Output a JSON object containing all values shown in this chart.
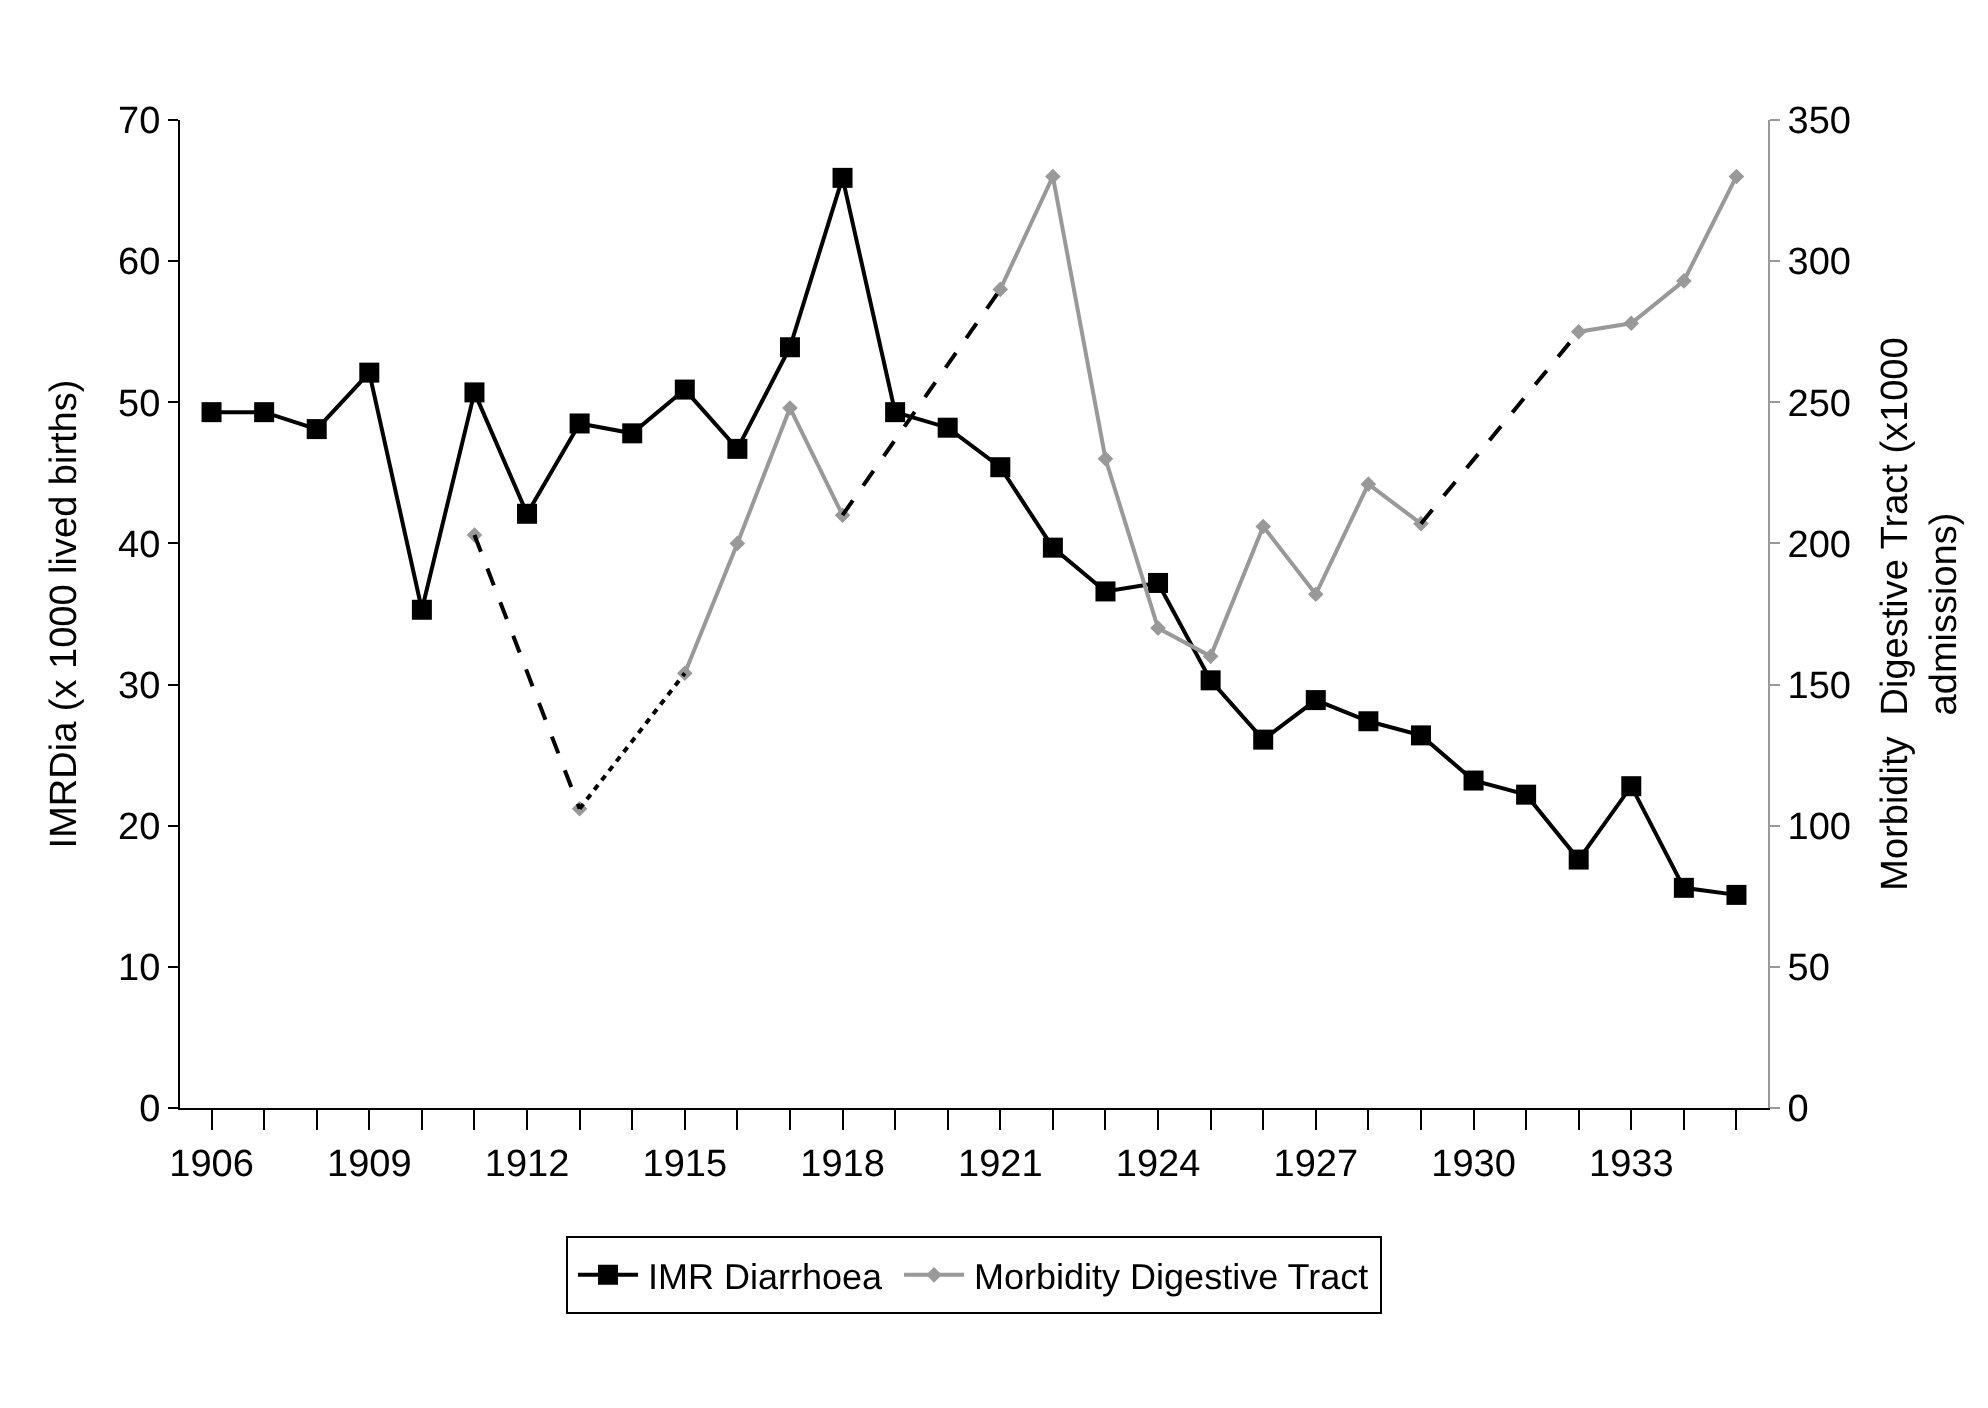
{
  "chart_data": {
    "type": "line",
    "ylabel": "IMRDia (x 1000 lived births)",
    "y2label": "Morbidity  Digestive Tract (x1000 admissions)",
    "x": [
      1906,
      1907,
      1908,
      1909,
      1910,
      1911,
      1912,
      1913,
      1914,
      1915,
      1916,
      1917,
      1918,
      1919,
      1920,
      1921,
      1922,
      1923,
      1924,
      1925,
      1926,
      1927,
      1928,
      1929,
      1930,
      1931,
      1932,
      1933,
      1934,
      1935
    ],
    "xlim": [
      1905.4,
      1935.6
    ],
    "xticks": [
      1906,
      {
        "value": 1907,
        "label": null
      },
      {
        "value": 1908,
        "label": null
      },
      1909,
      {
        "value": 1910,
        "label": null
      },
      {
        "value": 1911,
        "label": null
      },
      1912,
      {
        "value": 1913,
        "label": null
      },
      {
        "value": 1914,
        "label": null
      },
      1915,
      {
        "value": 1916,
        "label": null
      },
      {
        "value": 1917,
        "label": null
      },
      1918,
      {
        "value": 1919,
        "label": null
      },
      {
        "value": 1920,
        "label": null
      },
      1921,
      {
        "value": 1922,
        "label": null
      },
      {
        "value": 1923,
        "label": null
      },
      1924,
      {
        "value": 1925,
        "label": null
      },
      {
        "value": 1926,
        "label": null
      },
      1927,
      {
        "value": 1928,
        "label": null
      },
      {
        "value": 1929,
        "label": null
      },
      1930,
      {
        "value": 1931,
        "label": null
      },
      {
        "value": 1932,
        "label": null
      },
      1933,
      {
        "value": 1934,
        "label": null
      },
      {
        "value": 1935,
        "label": null
      }
    ],
    "ylim": [
      0,
      70
    ],
    "yticks": [
      0,
      10,
      20,
      30,
      40,
      50,
      60,
      70
    ],
    "y2lim": [
      0,
      350
    ],
    "y2ticks": [
      0,
      50,
      100,
      150,
      200,
      250,
      300,
      350
    ],
    "legend": "bottom",
    "series": [
      {
        "name": "IMR Diarrhoea",
        "color": "#000000",
        "marker": "square",
        "line_style": "solid",
        "values": [
          49.3,
          49.3,
          48.1,
          52.1,
          35.3,
          50.7,
          42.1,
          48.5,
          47.8,
          50.9,
          46.7,
          53.9,
          65.9,
          49.3,
          48.2,
          45.4,
          39.7,
          36.6,
          37.2,
          30.3,
          26.1,
          28.9,
          27.4,
          26.4,
          23.2,
          22.2,
          17.6,
          22.8,
          15.6,
          15.1
        ]
      },
      {
        "name": "Morbidity Digestive Tract",
        "color": "#999999",
        "marker": "diamond",
        "line_style": "solid",
        "axis": "y2",
        "values": [
          null,
          null,
          null,
          null,
          null,
          203,
          null,
          106,
          null,
          154,
          200,
          248,
          210,
          null,
          null,
          290,
          330,
          230,
          170,
          160,
          206,
          182,
          221,
          207,
          null,
          null,
          275,
          278,
          293,
          330
        ]
      },
      {
        "color": "#000000",
        "marker": "none",
        "line_style": "dashed",
        "axis": "y2",
        "x": [
          1911,
          1913,
          1914,
          1918,
          1921,
          1922,
          1929,
          1932
        ],
        "values": [
          203,
          106,
          null,
          210,
          290,
          null,
          207,
          275
        ]
      },
      {
        "color": "#000000",
        "marker": "none",
        "line_style": "dotted",
        "axis": "y2",
        "x": [
          1913,
          1915
        ],
        "values": [
          106,
          154
        ]
      }
    ]
  }
}
